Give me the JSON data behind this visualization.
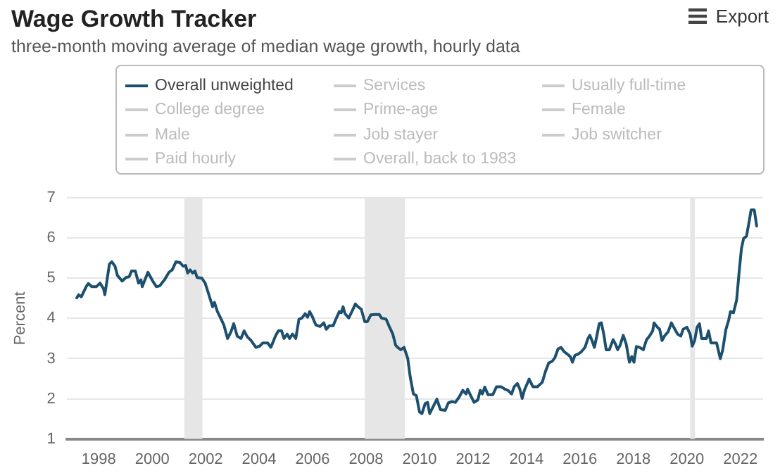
{
  "chart_data": {
    "type": "line",
    "title": "Wage Growth Tracker",
    "subtitle": "three-month moving average of median wage growth, hourly data",
    "ylabel": "Percent",
    "annotations": [
      "Export"
    ],
    "series": [
      {
        "name": "Overall unweighted",
        "color": "#1d4f6e",
        "x": [
          1997.18,
          1997.25,
          1997.35,
          1997.53,
          1997.61,
          1997.74,
          1997.91,
          1998.05,
          1998.18,
          1998.23,
          1998.4,
          1998.49,
          1998.61,
          1998.7,
          1998.88,
          1999.02,
          1999.14,
          1999.23,
          1999.37,
          1999.49,
          1999.58,
          1999.63,
          1999.84,
          2000.02,
          2000.16,
          2000.28,
          2000.46,
          2000.63,
          2000.75,
          2000.89,
          2001.04,
          2001.16,
          2001.25,
          2001.33,
          2001.42,
          2001.51,
          2001.6,
          2001.68,
          2001.86,
          2001.98,
          2002.12,
          2002.26,
          2002.33,
          2002.44,
          2002.56,
          2002.68,
          2002.82,
          2002.95,
          2003.05,
          2003.18,
          2003.32,
          2003.44,
          2003.56,
          2003.7,
          2003.88,
          2004.02,
          2004.14,
          2004.32,
          2004.44,
          2004.61,
          2004.72,
          2004.84,
          2004.93,
          2005.05,
          2005.14,
          2005.25,
          2005.37,
          2005.49,
          2005.6,
          2005.72,
          2005.81,
          2005.89,
          2005.98,
          2006.12,
          2006.28,
          2006.42,
          2006.51,
          2006.63,
          2006.77,
          2006.89,
          2007.0,
          2007.07,
          2007.14,
          2007.21,
          2007.35,
          2007.47,
          2007.6,
          2007.7,
          2007.82,
          2007.95,
          2008.05,
          2008.18,
          2008.35,
          2008.49,
          2008.58,
          2008.75,
          2008.88,
          2009.0,
          2009.11,
          2009.18,
          2009.3,
          2009.42,
          2009.56,
          2009.65,
          2009.77,
          2009.88,
          2010.0,
          2010.09,
          2010.21,
          2010.3,
          2010.38,
          2010.52,
          2010.65,
          2010.78,
          2010.96,
          2011.08,
          2011.22,
          2011.34,
          2011.48,
          2011.62,
          2011.74,
          2011.8,
          2011.92,
          2012.04,
          2012.18,
          2012.27,
          2012.35,
          2012.44,
          2012.56,
          2012.74,
          2012.88,
          2013.05,
          2013.19,
          2013.31,
          2013.44,
          2013.54,
          2013.66,
          2013.75,
          2013.84,
          2013.92,
          2014.1,
          2014.24,
          2014.41,
          2014.59,
          2014.71,
          2014.83,
          2014.97,
          2015.06,
          2015.18,
          2015.29,
          2015.41,
          2015.53,
          2015.64,
          2015.72,
          2015.81,
          2015.93,
          2016.05,
          2016.19,
          2016.3,
          2016.37,
          2016.45,
          2016.54,
          2016.63,
          2016.72,
          2016.8,
          2016.89,
          2016.98,
          2017.1,
          2017.24,
          2017.33,
          2017.41,
          2017.5,
          2017.62,
          2017.73,
          2017.85,
          2017.94,
          2018.02,
          2018.11,
          2018.23,
          2018.37,
          2018.49,
          2018.6,
          2018.72,
          2018.77,
          2018.9,
          2018.98,
          2019.07,
          2019.16,
          2019.3,
          2019.42,
          2019.51,
          2019.65,
          2019.77,
          2019.86,
          2020.0,
          2020.12,
          2020.2,
          2020.29,
          2020.38,
          2020.47,
          2020.55,
          2020.73,
          2020.81,
          2020.9,
          2021.11,
          2021.25,
          2021.34,
          2021.46,
          2021.56,
          2021.63,
          2021.74,
          2021.86,
          2021.95,
          2022.04,
          2022.12,
          2022.23,
          2022.33,
          2022.4,
          2022.52,
          2022.61
        ],
        "values": [
          4.51,
          4.59,
          4.54,
          4.79,
          4.87,
          4.79,
          4.79,
          4.88,
          4.74,
          4.59,
          5.35,
          5.41,
          5.3,
          5.07,
          4.93,
          5.02,
          5.04,
          5.18,
          5.18,
          4.88,
          4.96,
          4.79,
          5.15,
          4.93,
          4.79,
          4.81,
          4.96,
          5.15,
          5.21,
          5.41,
          5.39,
          5.3,
          5.32,
          5.13,
          5.21,
          5.13,
          5.18,
          5.02,
          5.0,
          4.88,
          4.59,
          4.29,
          4.4,
          4.17,
          4.01,
          3.84,
          3.5,
          3.67,
          3.87,
          3.56,
          3.5,
          3.69,
          3.54,
          3.45,
          3.28,
          3.31,
          3.39,
          3.39,
          3.28,
          3.56,
          3.69,
          3.69,
          3.5,
          3.61,
          3.5,
          3.61,
          3.5,
          3.98,
          4.01,
          4.12,
          4.03,
          4.17,
          4.06,
          3.84,
          3.8,
          3.89,
          3.73,
          3.82,
          3.82,
          4.01,
          4.17,
          4.14,
          4.29,
          4.12,
          4.01,
          4.17,
          4.36,
          4.29,
          4.23,
          3.92,
          3.92,
          4.09,
          4.1,
          4.1,
          4.01,
          3.98,
          3.78,
          3.61,
          3.33,
          3.28,
          3.22,
          3.28,
          3.0,
          2.55,
          2.12,
          2.08,
          1.67,
          1.63,
          1.88,
          1.91,
          1.63,
          1.82,
          1.99,
          1.73,
          1.71,
          1.9,
          1.93,
          1.91,
          2.04,
          2.21,
          2.12,
          2.24,
          2.07,
          1.91,
          1.97,
          2.21,
          2.12,
          2.29,
          2.1,
          2.1,
          2.3,
          2.3,
          2.24,
          2.21,
          2.12,
          2.3,
          2.38,
          2.24,
          2.01,
          2.21,
          2.49,
          2.3,
          2.3,
          2.41,
          2.68,
          2.89,
          2.94,
          3.02,
          3.24,
          3.28,
          3.17,
          3.11,
          3.05,
          2.91,
          3.08,
          3.11,
          3.17,
          3.28,
          3.5,
          3.58,
          3.45,
          3.28,
          3.56,
          3.87,
          3.89,
          3.61,
          3.22,
          3.22,
          3.47,
          3.36,
          3.22,
          3.33,
          3.58,
          3.36,
          2.91,
          3.05,
          2.91,
          3.3,
          3.28,
          3.22,
          3.47,
          3.56,
          3.69,
          3.89,
          3.78,
          3.73,
          3.45,
          3.56,
          3.67,
          3.89,
          3.78,
          3.61,
          3.56,
          3.73,
          3.78,
          3.61,
          3.31,
          3.45,
          3.78,
          3.87,
          3.5,
          3.5,
          3.69,
          3.39,
          3.39,
          3.0,
          3.22,
          3.73,
          3.95,
          4.17,
          4.14,
          4.46,
          5.13,
          5.74,
          5.99,
          6.05,
          6.42,
          6.7,
          6.7,
          6.3
        ]
      },
      {
        "name": "Services",
        "color": "#cccccc"
      },
      {
        "name": "Usually full-time",
        "color": "#cccccc"
      },
      {
        "name": "College degree",
        "color": "#cccccc"
      },
      {
        "name": "Prime-age",
        "color": "#cccccc"
      },
      {
        "name": "Female",
        "color": "#cccccc"
      },
      {
        "name": "Male",
        "color": "#cccccc"
      },
      {
        "name": "Job stayer",
        "color": "#cccccc"
      },
      {
        "name": "Job switcher",
        "color": "#cccccc"
      },
      {
        "name": "Paid hourly",
        "color": "#cccccc"
      },
      {
        "name": "Overall, back to 1983",
        "color": "#cccccc"
      }
    ],
    "bands": [
      {
        "axis": "x",
        "from": 2001.2,
        "to": 2001.88,
        "color": "#e6e6e6"
      },
      {
        "axis": "x",
        "from": 2007.95,
        "to": 2009.45,
        "color": "#e6e6e6"
      },
      {
        "axis": "x",
        "from": 2020.12,
        "to": 2020.3,
        "color": "#e6e6e6"
      }
    ],
    "xlim": [
      1996.8,
      2022.85
    ],
    "xticks": [
      1998,
      2000,
      2002,
      2004,
      2006,
      2008,
      2010,
      2012,
      2014,
      2016,
      2018,
      2020,
      2022
    ],
    "ylim": [
      1,
      7
    ],
    "yticks": [
      1,
      2,
      3,
      4,
      5,
      6,
      7
    ],
    "grid": "y",
    "legend": "top",
    "marker": "none",
    "line_style": "solid"
  }
}
